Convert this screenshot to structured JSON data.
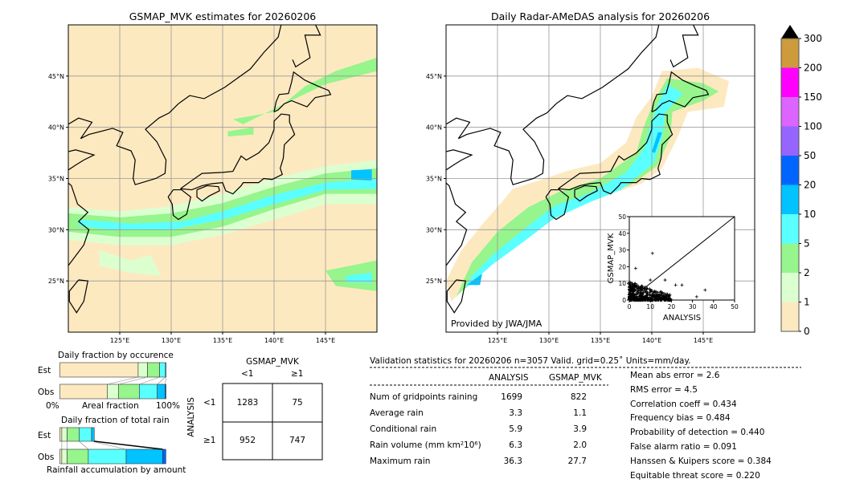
{
  "left_map": {
    "title": "GSMAP_MVK estimates for 20260206"
  },
  "right_map": {
    "title": "Daily Radar-AMeDAS analysis for 20260206",
    "credit": "Provided by JWA/JMA"
  },
  "map_axes": {
    "lon_ticks": [
      "125°E",
      "130°E",
      "135°E",
      "140°E",
      "145°E"
    ],
    "lat_ticks": [
      "45°N",
      "40°N",
      "35°N",
      "30°N",
      "25°N"
    ],
    "lon_range": [
      120,
      150
    ],
    "lat_range": [
      20,
      50
    ]
  },
  "colorbar": {
    "levels": [
      "0",
      "1",
      "2",
      "5",
      "10",
      "20",
      "50",
      "100",
      "150",
      "200",
      "300"
    ],
    "colors": [
      "#fde9c0",
      "#dcffd0",
      "#96f58c",
      "#5affff",
      "#00c3ff",
      "#0064ff",
      "#9664ff",
      "#dc64ff",
      "#ff00ff",
      "#cd9a3c"
    ],
    "extend": "max"
  },
  "chart_data": [
    {
      "type": "scatter",
      "xlabel": "ANALYSIS",
      "ylabel": "GSMAP_MVK",
      "xlim": [
        0,
        50
      ],
      "ylim": [
        0,
        50
      ],
      "ticks": [
        "0",
        "10",
        "20",
        "30",
        "40",
        "50"
      ],
      "outliers": [
        [
          11,
          28
        ],
        [
          3,
          19
        ],
        [
          36,
          6
        ],
        [
          32,
          2
        ],
        [
          25,
          9
        ],
        [
          17,
          12
        ],
        [
          22,
          9
        ],
        [
          10,
          12
        ]
      ]
    },
    {
      "type": "bar",
      "title": "Daily fraction by occurence",
      "xlabel": "Areal fraction",
      "xmin_label": "0%",
      "xmax_label": "100%",
      "series": [
        {
          "name": "Est",
          "values": [
            0.738,
            0.088,
            0.114,
            0.055,
            0.005
          ]
        },
        {
          "name": "Obs",
          "values": [
            0.446,
            0.106,
            0.197,
            0.169,
            0.075,
            0.007
          ]
        }
      ]
    },
    {
      "type": "bar",
      "title": "Daily fraction of total rain",
      "xlabel": "Rainfall accumulation by amount",
      "series": [
        {
          "name": "Est",
          "values": [
            0.018,
            0.05,
            0.113,
            0.118,
            0.025
          ]
        },
        {
          "name": "Obs",
          "values": [
            0.018,
            0.05,
            0.2,
            0.357,
            0.344,
            0.03
          ]
        }
      ]
    },
    {
      "type": "table",
      "title": "GSMAP_MVK",
      "row_label": "ANALYSIS",
      "col_headers": [
        "<1",
        "≥1"
      ],
      "row_headers": [
        "<1",
        "≥1"
      ],
      "cells": [
        [
          "1283",
          "75"
        ],
        [
          "952",
          "747"
        ]
      ]
    }
  ],
  "stats": {
    "header": "Validation statistics for 20260206  n=3057 Valid. grid=0.25˚ Units=mm/day.",
    "col_analysis": "ANALYSIS",
    "col_gsmap": "GSMAP_MVK",
    "rows": [
      {
        "label": "Num of gridpoints raining",
        "a": "1699",
        "g": "822"
      },
      {
        "label": "Average rain",
        "a": "3.3",
        "g": "1.1"
      },
      {
        "label": "Conditional rain",
        "a": "5.9",
        "g": "3.9"
      },
      {
        "label": "Rain volume (mm km²10⁶)",
        "a": "6.3",
        "g": "2.0"
      },
      {
        "label": "Maximum rain",
        "a": "36.3",
        "g": "27.7"
      }
    ],
    "scores": [
      "Mean abs error =    2.6",
      "RMS error =    4.5",
      "Correlation coeff =  0.434",
      "Frequency bias =  0.484",
      "Probability of detection =  0.440",
      "False alarm ratio =  0.091",
      "Hanssen & Kuipers score =  0.384",
      "Equitable threat score =  0.220"
    ]
  }
}
